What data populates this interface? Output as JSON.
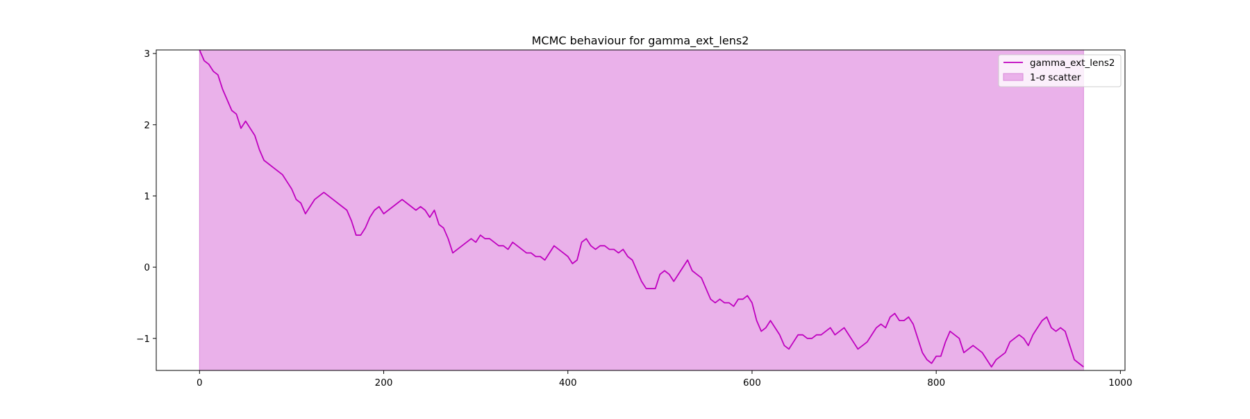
{
  "chart_data": {
    "type": "line",
    "title": "MCMC behaviour for gamma_ext_lens2",
    "xlabel": "",
    "ylabel": "",
    "xlim": [
      -47,
      1005
    ],
    "ylim": [
      -1.45,
      3.05
    ],
    "x_ticks": [
      {
        "value": 0,
        "label": "0"
      },
      {
        "value": 200,
        "label": "200"
      },
      {
        "value": 400,
        "label": "400"
      },
      {
        "value": 600,
        "label": "600"
      },
      {
        "value": 800,
        "label": "800"
      },
      {
        "value": 1000,
        "label": "1000"
      }
    ],
    "y_ticks": [
      {
        "value": -1,
        "label": "−1"
      },
      {
        "value": 0,
        "label": "0"
      },
      {
        "value": 1,
        "label": "1"
      },
      {
        "value": 2,
        "label": "2"
      },
      {
        "value": 3,
        "label": "3"
      }
    ],
    "grid": false,
    "legend_position": "top-right",
    "series": [
      {
        "name": "gamma_ext_lens2",
        "color": "#bf00bf",
        "points": [
          [
            0,
            3.05
          ],
          [
            5,
            2.9
          ],
          [
            10,
            2.85
          ],
          [
            15,
            2.75
          ],
          [
            20,
            2.7
          ],
          [
            25,
            2.5
          ],
          [
            30,
            2.35
          ],
          [
            35,
            2.2
          ],
          [
            40,
            2.15
          ],
          [
            45,
            1.95
          ],
          [
            50,
            2.05
          ],
          [
            55,
            1.95
          ],
          [
            60,
            1.85
          ],
          [
            65,
            1.65
          ],
          [
            70,
            1.5
          ],
          [
            75,
            1.45
          ],
          [
            80,
            1.4
          ],
          [
            85,
            1.35
          ],
          [
            90,
            1.3
          ],
          [
            95,
            1.2
          ],
          [
            100,
            1.1
          ],
          [
            105,
            0.95
          ],
          [
            110,
            0.9
          ],
          [
            115,
            0.75
          ],
          [
            120,
            0.85
          ],
          [
            125,
            0.95
          ],
          [
            130,
            1.0
          ],
          [
            135,
            1.05
          ],
          [
            140,
            1.0
          ],
          [
            145,
            0.95
          ],
          [
            150,
            0.9
          ],
          [
            155,
            0.85
          ],
          [
            160,
            0.8
          ],
          [
            165,
            0.65
          ],
          [
            170,
            0.45
          ],
          [
            175,
            0.45
          ],
          [
            180,
            0.55
          ],
          [
            185,
            0.7
          ],
          [
            190,
            0.8
          ],
          [
            195,
            0.85
          ],
          [
            200,
            0.75
          ],
          [
            205,
            0.8
          ],
          [
            210,
            0.85
          ],
          [
            215,
            0.9
          ],
          [
            220,
            0.95
          ],
          [
            225,
            0.9
          ],
          [
            230,
            0.85
          ],
          [
            235,
            0.8
          ],
          [
            240,
            0.85
          ],
          [
            245,
            0.8
          ],
          [
            250,
            0.7
          ],
          [
            255,
            0.8
          ],
          [
            260,
            0.6
          ],
          [
            265,
            0.55
          ],
          [
            270,
            0.4
          ],
          [
            275,
            0.2
          ],
          [
            280,
            0.25
          ],
          [
            285,
            0.3
          ],
          [
            290,
            0.35
          ],
          [
            295,
            0.4
          ],
          [
            300,
            0.35
          ],
          [
            305,
            0.45
          ],
          [
            310,
            0.4
          ],
          [
            315,
            0.4
          ],
          [
            320,
            0.35
          ],
          [
            325,
            0.3
          ],
          [
            330,
            0.3
          ],
          [
            335,
            0.25
          ],
          [
            340,
            0.35
          ],
          [
            345,
            0.3
          ],
          [
            350,
            0.25
          ],
          [
            355,
            0.2
          ],
          [
            360,
            0.2
          ],
          [
            365,
            0.15
          ],
          [
            370,
            0.15
          ],
          [
            375,
            0.1
          ],
          [
            380,
            0.2
          ],
          [
            385,
            0.3
          ],
          [
            390,
            0.25
          ],
          [
            395,
            0.2
          ],
          [
            400,
            0.15
          ],
          [
            405,
            0.05
          ],
          [
            410,
            0.1
          ],
          [
            415,
            0.35
          ],
          [
            420,
            0.4
          ],
          [
            425,
            0.3
          ],
          [
            430,
            0.25
          ],
          [
            435,
            0.3
          ],
          [
            440,
            0.3
          ],
          [
            445,
            0.25
          ],
          [
            450,
            0.25
          ],
          [
            455,
            0.2
          ],
          [
            460,
            0.25
          ],
          [
            465,
            0.15
          ],
          [
            470,
            0.1
          ],
          [
            475,
            -0.05
          ],
          [
            480,
            -0.2
          ],
          [
            485,
            -0.3
          ],
          [
            490,
            -0.3
          ],
          [
            495,
            -0.3
          ],
          [
            500,
            -0.1
          ],
          [
            505,
            -0.05
          ],
          [
            510,
            -0.1
          ],
          [
            515,
            -0.2
          ],
          [
            520,
            -0.1
          ],
          [
            525,
            0.0
          ],
          [
            530,
            0.1
          ],
          [
            535,
            -0.05
          ],
          [
            540,
            -0.1
          ],
          [
            545,
            -0.15
          ],
          [
            550,
            -0.3
          ],
          [
            555,
            -0.45
          ],
          [
            560,
            -0.5
          ],
          [
            565,
            -0.45
          ],
          [
            570,
            -0.5
          ],
          [
            575,
            -0.5
          ],
          [
            580,
            -0.55
          ],
          [
            585,
            -0.45
          ],
          [
            590,
            -0.45
          ],
          [
            595,
            -0.4
          ],
          [
            600,
            -0.5
          ],
          [
            605,
            -0.75
          ],
          [
            610,
            -0.9
          ],
          [
            615,
            -0.85
          ],
          [
            620,
            -0.75
          ],
          [
            625,
            -0.85
          ],
          [
            630,
            -0.95
          ],
          [
            635,
            -1.1
          ],
          [
            640,
            -1.15
          ],
          [
            645,
            -1.05
          ],
          [
            650,
            -0.95
          ],
          [
            655,
            -0.95
          ],
          [
            660,
            -1.0
          ],
          [
            665,
            -1.0
          ],
          [
            670,
            -0.95
          ],
          [
            675,
            -0.95
          ],
          [
            680,
            -0.9
          ],
          [
            685,
            -0.85
          ],
          [
            690,
            -0.95
          ],
          [
            695,
            -0.9
          ],
          [
            700,
            -0.85
          ],
          [
            705,
            -0.95
          ],
          [
            710,
            -1.05
          ],
          [
            715,
            -1.15
          ],
          [
            720,
            -1.1
          ],
          [
            725,
            -1.05
          ],
          [
            730,
            -0.95
          ],
          [
            735,
            -0.85
          ],
          [
            740,
            -0.8
          ],
          [
            745,
            -0.85
          ],
          [
            750,
            -0.7
          ],
          [
            755,
            -0.65
          ],
          [
            760,
            -0.75
          ],
          [
            765,
            -0.75
          ],
          [
            770,
            -0.7
          ],
          [
            775,
            -0.8
          ],
          [
            780,
            -1.0
          ],
          [
            785,
            -1.2
          ],
          [
            790,
            -1.3
          ],
          [
            795,
            -1.35
          ],
          [
            800,
            -1.25
          ],
          [
            805,
            -1.25
          ],
          [
            810,
            -1.05
          ],
          [
            815,
            -0.9
          ],
          [
            820,
            -0.95
          ],
          [
            825,
            -1.0
          ],
          [
            830,
            -1.2
          ],
          [
            835,
            -1.15
          ],
          [
            840,
            -1.1
          ],
          [
            845,
            -1.15
          ],
          [
            850,
            -1.2
          ],
          [
            855,
            -1.3
          ],
          [
            860,
            -1.4
          ],
          [
            865,
            -1.3
          ],
          [
            870,
            -1.25
          ],
          [
            875,
            -1.2
          ],
          [
            880,
            -1.05
          ],
          [
            885,
            -1.0
          ],
          [
            890,
            -0.95
          ],
          [
            895,
            -1.0
          ],
          [
            900,
            -1.1
          ],
          [
            905,
            -0.95
          ],
          [
            910,
            -0.85
          ],
          [
            915,
            -0.75
          ],
          [
            920,
            -0.7
          ],
          [
            925,
            -0.85
          ],
          [
            930,
            -0.9
          ],
          [
            935,
            -0.85
          ],
          [
            940,
            -0.9
          ],
          [
            945,
            -1.1
          ],
          [
            950,
            -1.3
          ],
          [
            955,
            -1.35
          ],
          [
            960,
            -1.4
          ]
        ]
      }
    ],
    "bands": [
      {
        "name": "1-σ scatter",
        "color": "#eab1ea",
        "edge_color": "#d98ad9",
        "x_range": [
          0,
          960
        ],
        "lower": -1.45,
        "upper": 3.05
      }
    ]
  }
}
